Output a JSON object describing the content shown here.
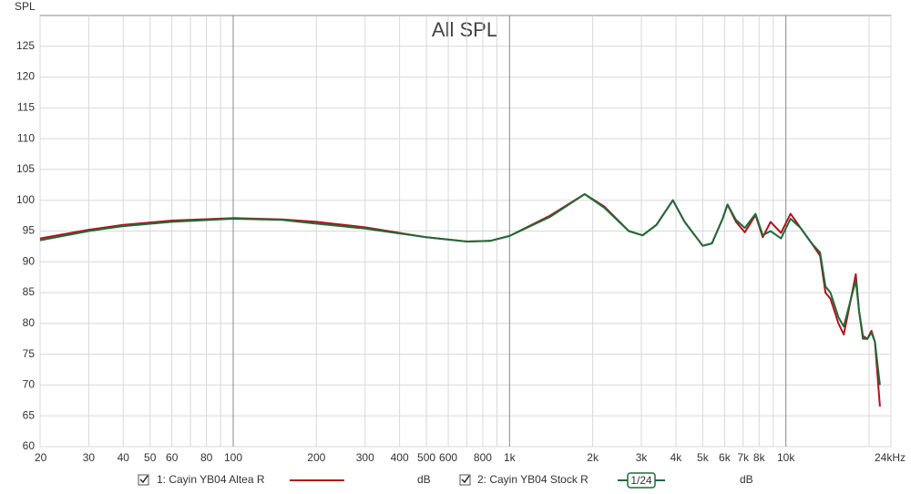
{
  "chart_data": {
    "type": "line",
    "title": "All SPL",
    "y_label": "SPL",
    "log_x": true,
    "grid": true,
    "x": [
      20,
      30,
      40,
      60,
      100,
      150,
      200,
      300,
      500,
      700,
      850,
      1000,
      1400,
      1870,
      2200,
      2700,
      3030,
      3400,
      3900,
      4300,
      5000,
      5400,
      5900,
      6150,
      6600,
      7100,
      7760,
      8250,
      8800,
      9600,
      10400,
      11300,
      12400,
      13300,
      13900,
      14500,
      15500,
      16200,
      17200,
      17900,
      18400,
      19000,
      19700,
      20400,
      21000,
      21900
    ],
    "xlim": [
      20,
      24000
    ],
    "ylim": [
      60,
      130
    ],
    "xticks": [
      20,
      30,
      40,
      50,
      60,
      80,
      100,
      200,
      300,
      400,
      500,
      600,
      800,
      {
        "value": 1000,
        "label": "1k"
      },
      {
        "value": 2000,
        "label": "2k"
      },
      {
        "value": 3000,
        "label": "3k"
      },
      {
        "value": 4000,
        "label": "4k"
      },
      {
        "value": 5000,
        "label": "5k"
      },
      {
        "value": 6000,
        "label": "6k"
      },
      {
        "value": 7000,
        "label": "7k"
      },
      {
        "value": 8000,
        "label": "8k"
      },
      {
        "value": 10000,
        "label": "10k"
      },
      {
        "value": 24000,
        "label": "24kHz"
      }
    ],
    "xticks_minor": [
      70,
      90,
      700,
      900,
      9000,
      20000
    ],
    "yticks": [
      60,
      65,
      70,
      75,
      80,
      85,
      90,
      95,
      100,
      105,
      110,
      115,
      120,
      125
    ],
    "series": [
      {
        "name": "1: Cayin YB04 Altea R",
        "color": "#b3121b",
        "unit": "dB",
        "values": [
          93.8,
          95.2,
          96.0,
          96.7,
          97.1,
          96.9,
          96.5,
          95.6,
          94.0,
          93.3,
          93.4,
          94.2,
          97.5,
          101.0,
          99.0,
          95.0,
          94.3,
          96.0,
          100.0,
          96.5,
          92.6,
          93.0,
          97.0,
          99.3,
          96.5,
          94.8,
          97.6,
          94.0,
          96.5,
          94.7,
          97.8,
          95.5,
          93.0,
          91.0,
          85.0,
          84.0,
          80.0,
          78.2,
          84.0,
          88.0,
          82.0,
          78.0,
          77.5,
          78.8,
          77.0,
          66.5
        ]
      },
      {
        "name": "2: Cayin YB04 Stock R",
        "color": "#1e6b3a",
        "unit": "dB",
        "smoothing": "1/24",
        "values": [
          93.5,
          95.0,
          95.8,
          96.5,
          97.0,
          96.8,
          96.2,
          95.4,
          94.0,
          93.3,
          93.4,
          94.2,
          97.3,
          101.0,
          98.8,
          95.0,
          94.3,
          96.0,
          100.0,
          96.5,
          92.6,
          93.0,
          97.0,
          99.3,
          96.8,
          95.5,
          97.8,
          94.3,
          95.0,
          93.8,
          97.0,
          95.5,
          93.0,
          91.5,
          86.0,
          85.0,
          81.0,
          79.5,
          84.0,
          87.0,
          82.0,
          77.5,
          77.5,
          78.5,
          77.0,
          70.0
        ]
      }
    ]
  }
}
